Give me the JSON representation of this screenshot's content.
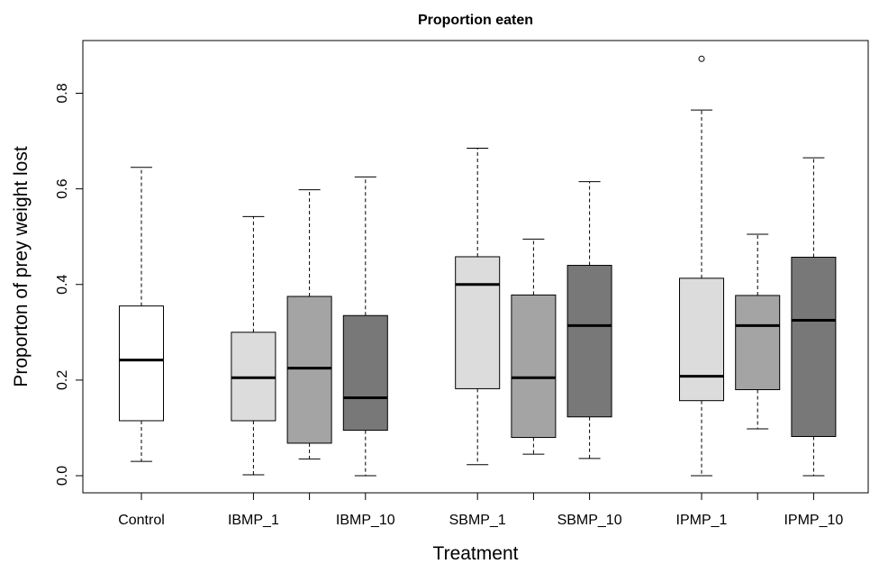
{
  "chart_data": {
    "type": "boxplot",
    "title": "Proportion eaten",
    "xlabel": "Treatment",
    "ylabel": "Proporton of prey weight lost",
    "ylim": [
      -0.03,
      0.92
    ],
    "yticks": [
      "0.0",
      "0.2",
      "0.4",
      "0.6",
      "0.8"
    ],
    "grid": false,
    "legend": "none",
    "categories": [
      "Control",
      "IBMP_1",
      "IBMP_10",
      "SBMP_1",
      "SBMP_10",
      "IPMP_1",
      "IPMP_10"
    ],
    "boxes": [
      {
        "slot": 0,
        "label": "Control",
        "min": 0.03,
        "q1": 0.115,
        "median": 0.242,
        "q3": 0.355,
        "max": 0.645,
        "outliers": [],
        "color": "#ffffff"
      },
      {
        "slot": 2,
        "label": "IBMP_1",
        "min": 0.002,
        "q1": 0.115,
        "median": 0.205,
        "q3": 0.3,
        "max": 0.542,
        "outliers": [],
        "color": "#dcdcdc"
      },
      {
        "slot": 3,
        "label": "",
        "min": 0.035,
        "q1": 0.068,
        "median": 0.225,
        "q3": 0.375,
        "max": 0.598,
        "outliers": [],
        "color": "#a4a4a4"
      },
      {
        "slot": 4,
        "label": "IBMP_10",
        "min": 0.0,
        "q1": 0.095,
        "median": 0.163,
        "q3": 0.335,
        "max": 0.625,
        "outliers": [],
        "color": "#787878"
      },
      {
        "slot": 6,
        "label": "SBMP_1",
        "min": 0.023,
        "q1": 0.182,
        "median": 0.4,
        "q3": 0.458,
        "max": 0.685,
        "outliers": [],
        "color": "#dcdcdc"
      },
      {
        "slot": 7,
        "label": "",
        "min": 0.045,
        "q1": 0.08,
        "median": 0.205,
        "q3": 0.378,
        "max": 0.495,
        "outliers": [],
        "color": "#a4a4a4"
      },
      {
        "slot": 8,
        "label": "SBMP_10",
        "min": 0.036,
        "q1": 0.123,
        "median": 0.314,
        "q3": 0.44,
        "max": 0.615,
        "outliers": [],
        "color": "#787878"
      },
      {
        "slot": 10,
        "label": "IPMP_1",
        "min": 0.0,
        "q1": 0.157,
        "median": 0.208,
        "q3": 0.413,
        "max": 0.765,
        "outliers": [
          0.872
        ],
        "color": "#dcdcdc"
      },
      {
        "slot": 11,
        "label": "",
        "min": 0.098,
        "q1": 0.18,
        "median": 0.314,
        "q3": 0.377,
        "max": 0.505,
        "outliers": [],
        "color": "#a4a4a4"
      },
      {
        "slot": 12,
        "label": "IPMP_10",
        "min": 0.0,
        "q1": 0.082,
        "median": 0.325,
        "q3": 0.457,
        "max": 0.665,
        "outliers": [],
        "color": "#787878"
      }
    ]
  }
}
